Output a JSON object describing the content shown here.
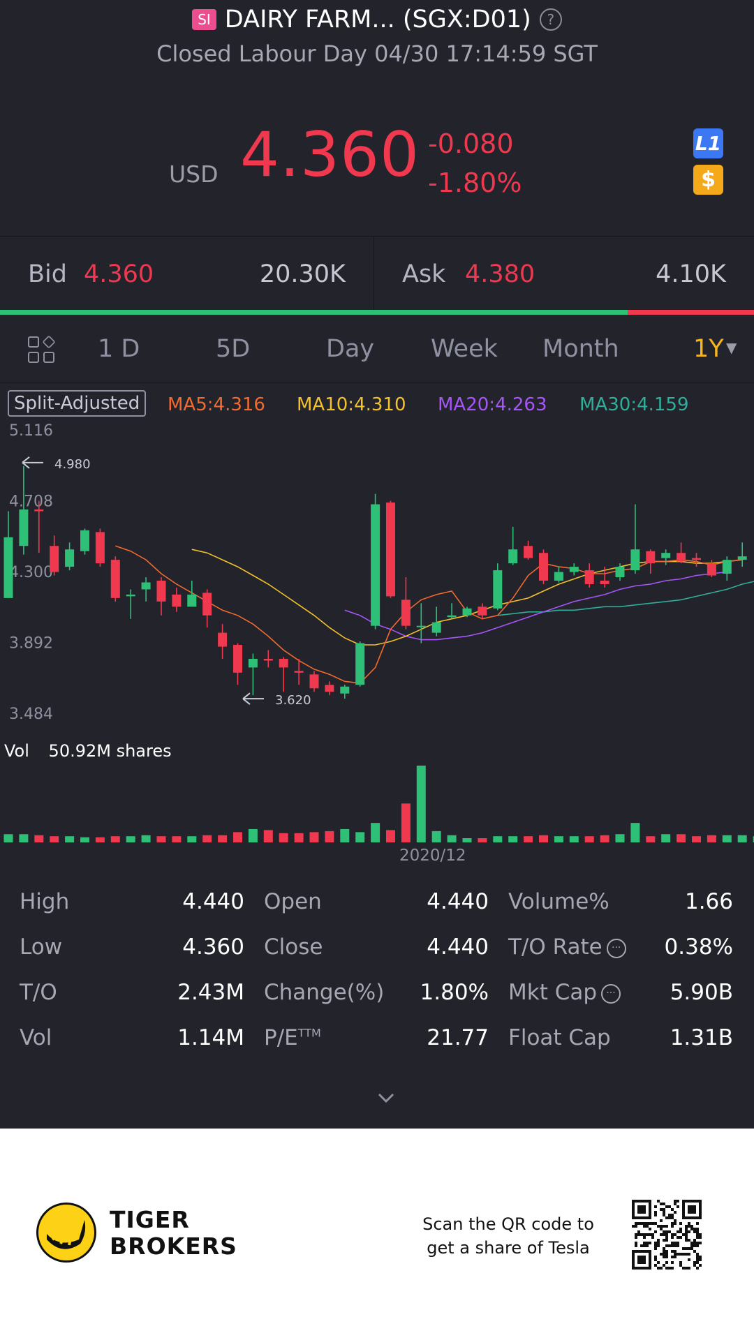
{
  "header": {
    "badge": "SI",
    "title": "DAIRY FARM... (SGX:D01)",
    "help_icon": "help-circle-icon",
    "status": "Closed Labour Day 04/30 17:14:59 SGT"
  },
  "quote": {
    "currency": "USD",
    "last": "4.360",
    "change": "-0.080",
    "change_pct": "-1.80%",
    "level_icon": "L1",
    "dollar_icon": "$",
    "colors": {
      "down": "#f0384e",
      "up": "#2dc076",
      "accent": "#f6b51e"
    }
  },
  "bid_ask": {
    "bid_label": "Bid",
    "bid_price": "4.360",
    "bid_size": "20.30K",
    "ask_label": "Ask",
    "ask_price": "4.380",
    "ask_size": "4.10K",
    "bid_ratio": 0.832
  },
  "periods": {
    "items": [
      "1 D",
      "5D",
      "Day",
      "Week",
      "Month",
      "1Y"
    ],
    "active": "1Y",
    "layout_icon": "grid-layout-icon",
    "dropdown_icon": "caret-down-icon"
  },
  "indicators": {
    "split": "Split-Adjusted",
    "ma5": "MA5:4.316",
    "ma10": "MA10:4.310",
    "ma20": "MA20:4.263",
    "ma30": "MA30:4.159",
    "colors": {
      "ma5": "#f26a2e",
      "ma10": "#f3c12a",
      "ma20": "#a855f7",
      "ma30": "#2fae99"
    }
  },
  "chart_data": {
    "type": "candlestick",
    "y_ticks": [
      "5.116",
      "4.708",
      "4.300",
      "3.892",
      "3.484"
    ],
    "ylim": [
      3.484,
      5.116
    ],
    "high_marker": "4.980",
    "low_marker": "3.620",
    "x_label": "2020/12",
    "candles": [
      {
        "o": 4.2,
        "c": 4.55,
        "h": 4.7,
        "l": 4.2
      },
      {
        "o": 4.5,
        "c": 4.71,
        "h": 4.96,
        "l": 4.45
      },
      {
        "o": 4.71,
        "c": 4.7,
        "h": 4.76,
        "l": 4.46
      },
      {
        "o": 4.5,
        "c": 4.35,
        "h": 4.56,
        "l": 4.33
      },
      {
        "o": 4.38,
        "c": 4.48,
        "h": 4.52,
        "l": 4.36
      },
      {
        "o": 4.47,
        "c": 4.59,
        "h": 4.6,
        "l": 4.45
      },
      {
        "o": 4.58,
        "c": 4.4,
        "h": 4.6,
        "l": 4.38
      },
      {
        "o": 4.42,
        "c": 4.2,
        "h": 4.44,
        "l": 4.18
      },
      {
        "o": 4.21,
        "c": 4.22,
        "h": 4.25,
        "l": 4.08
      },
      {
        "o": 4.25,
        "c": 4.29,
        "h": 4.32,
        "l": 4.18
      },
      {
        "o": 4.3,
        "c": 4.18,
        "h": 4.32,
        "l": 4.1
      },
      {
        "o": 4.22,
        "c": 4.15,
        "h": 4.26,
        "l": 4.12
      },
      {
        "o": 4.15,
        "c": 4.22,
        "h": 4.3,
        "l": 4.15
      },
      {
        "o": 4.23,
        "c": 4.1,
        "h": 4.25,
        "l": 4.03
      },
      {
        "o": 4.0,
        "c": 3.92,
        "h": 4.05,
        "l": 3.85
      },
      {
        "o": 3.93,
        "c": 3.77,
        "h": 3.94,
        "l": 3.7
      },
      {
        "o": 3.8,
        "c": 3.85,
        "h": 3.88,
        "l": 3.64
      },
      {
        "o": 3.85,
        "c": 3.84,
        "h": 3.9,
        "l": 3.8
      },
      {
        "o": 3.85,
        "c": 3.8,
        "h": 3.86,
        "l": 3.66
      },
      {
        "o": 3.78,
        "c": 3.77,
        "h": 3.85,
        "l": 3.7
      },
      {
        "o": 3.76,
        "c": 3.68,
        "h": 3.78,
        "l": 3.66
      },
      {
        "o": 3.7,
        "c": 3.66,
        "h": 3.72,
        "l": 3.64
      },
      {
        "o": 3.65,
        "c": 3.69,
        "h": 3.7,
        "l": 3.62
      },
      {
        "o": 3.7,
        "c": 3.94,
        "h": 3.95,
        "l": 3.69
      },
      {
        "o": 4.04,
        "c": 4.74,
        "h": 4.8,
        "l": 4.02
      },
      {
        "o": 4.75,
        "c": 4.21,
        "h": 4.76,
        "l": 4.2
      },
      {
        "o": 4.19,
        "c": 4.04,
        "h": 4.32,
        "l": 4.02
      },
      {
        "o": 4.04,
        "c": 4.04,
        "h": 4.17,
        "l": 3.94
      },
      {
        "o": 4.0,
        "c": 4.06,
        "h": 4.15,
        "l": 3.98
      },
      {
        "o": 4.09,
        "c": 4.1,
        "h": 4.17,
        "l": 4.08
      },
      {
        "o": 4.1,
        "c": 4.14,
        "h": 4.15,
        "l": 4.09
      },
      {
        "o": 4.15,
        "c": 4.1,
        "h": 4.17,
        "l": 4.08
      },
      {
        "o": 4.14,
        "c": 4.36,
        "h": 4.4,
        "l": 4.13
      },
      {
        "o": 4.4,
        "c": 4.48,
        "h": 4.61,
        "l": 4.39
      },
      {
        "o": 4.5,
        "c": 4.43,
        "h": 4.53,
        "l": 4.42
      },
      {
        "o": 4.46,
        "c": 4.3,
        "h": 4.48,
        "l": 4.28
      },
      {
        "o": 4.3,
        "c": 4.35,
        "h": 4.38,
        "l": 4.29
      },
      {
        "o": 4.35,
        "c": 4.38,
        "h": 4.4,
        "l": 4.33
      },
      {
        "o": 4.36,
        "c": 4.28,
        "h": 4.4,
        "l": 4.26
      },
      {
        "o": 4.3,
        "c": 4.28,
        "h": 4.38,
        "l": 4.26
      },
      {
        "o": 4.32,
        "c": 4.38,
        "h": 4.4,
        "l": 4.3
      },
      {
        "o": 4.36,
        "c": 4.48,
        "h": 4.74,
        "l": 4.34
      },
      {
        "o": 4.47,
        "c": 4.4,
        "h": 4.48,
        "l": 4.34
      },
      {
        "o": 4.43,
        "c": 4.46,
        "h": 4.48,
        "l": 4.39
      },
      {
        "o": 4.46,
        "c": 4.41,
        "h": 4.52,
        "l": 4.4
      },
      {
        "o": 4.43,
        "c": 4.42,
        "h": 4.46,
        "l": 4.38
      },
      {
        "o": 4.4,
        "c": 4.33,
        "h": 4.42,
        "l": 4.32
      },
      {
        "o": 4.34,
        "c": 4.42,
        "h": 4.44,
        "l": 4.3
      },
      {
        "o": 4.42,
        "c": 4.44,
        "h": 4.52,
        "l": 4.38
      }
    ],
    "volumes": [
      0.08,
      0.08,
      0.07,
      0.06,
      0.06,
      0.05,
      0.05,
      0.06,
      0.06,
      0.07,
      0.06,
      0.06,
      0.06,
      0.07,
      0.07,
      0.1,
      0.13,
      0.12,
      0.09,
      0.09,
      0.1,
      0.11,
      0.13,
      0.1,
      0.19,
      0.12,
      0.38,
      0.75,
      0.11,
      0.07,
      0.02,
      0.01,
      0.06,
      0.06,
      0.06,
      0.07,
      0.06,
      0.06,
      0.06,
      0.07,
      0.08,
      0.19,
      0.06,
      0.08,
      0.08,
      0.06,
      0.07,
      0.07,
      0.07,
      0.06
    ],
    "ma5": [
      null,
      null,
      null,
      null,
      4.5,
      4.47,
      4.42,
      4.34,
      4.28,
      4.23,
      4.18,
      4.13,
      4.1,
      4.05,
      3.98,
      3.9,
      3.84,
      3.79,
      3.76,
      3.72,
      3.71,
      3.8,
      4.02,
      4.12,
      4.19,
      4.22,
      4.24,
      4.12,
      4.08,
      4.1,
      4.2,
      4.33,
      4.4,
      4.38,
      4.37,
      4.34,
      4.34,
      4.36,
      4.37,
      4.41,
      4.41,
      4.42,
      4.41,
      4.39,
      4.41,
      4.42
    ],
    "ma10": [
      null,
      null,
      null,
      null,
      null,
      null,
      null,
      null,
      null,
      4.48,
      4.46,
      4.42,
      4.38,
      4.33,
      4.28,
      4.22,
      4.16,
      4.1,
      4.03,
      3.97,
      3.93,
      3.93,
      3.95,
      3.98,
      4.02,
      4.06,
      4.08,
      4.1,
      4.13,
      4.16,
      4.18,
      4.2,
      4.24,
      4.28,
      4.31,
      4.34,
      4.36,
      4.38,
      4.4,
      4.41,
      4.41,
      4.41,
      4.4,
      4.4,
      4.41,
      4.42
    ],
    "ma20_from": 22,
    "ma20": [
      4.13,
      4.1,
      4.05,
      4.02,
      3.98,
      3.96,
      3.96,
      3.97,
      3.98,
      4.0,
      4.03,
      4.06,
      4.09,
      4.12,
      4.15,
      4.18,
      4.2,
      4.22,
      4.25,
      4.27,
      4.28,
      4.3,
      4.31,
      4.33,
      4.34,
      4.35
    ],
    "ma30_from": 32,
    "ma30": [
      4.1,
      4.11,
      4.12,
      4.12,
      4.13,
      4.13,
      4.14,
      4.15,
      4.15,
      4.16,
      4.17,
      4.18,
      4.19,
      4.21,
      4.23,
      4.25,
      4.28,
      4.3
    ]
  },
  "volume": {
    "label": "Vol",
    "value": "50.92M shares"
  },
  "stats": [
    {
      "label": "High",
      "value": "4.440"
    },
    {
      "label": "Open",
      "value": "4.440"
    },
    {
      "label": "Volume%",
      "value": "1.66"
    },
    {
      "label": "Low",
      "value": "4.360"
    },
    {
      "label": "Close",
      "value": "4.440"
    },
    {
      "label": "T/O Rate",
      "value": "0.38%"
    },
    {
      "label": "T/O",
      "value": "2.43M"
    },
    {
      "label": "Change(%)",
      "value": "1.80%"
    },
    {
      "label": "Mkt Cap",
      "value": "5.90B"
    },
    {
      "label": "Vol",
      "value": "1.14M"
    },
    {
      "label": "P/E",
      "label_sup": "TTM",
      "value": "21.77"
    },
    {
      "label": "Float Cap",
      "value": "1.31B"
    }
  ],
  "footer": {
    "brand_line1": "TIGER",
    "brand_line2": "BROKERS",
    "promo_line1": "Scan the QR code to",
    "promo_line2": "get a share of Tesla"
  }
}
